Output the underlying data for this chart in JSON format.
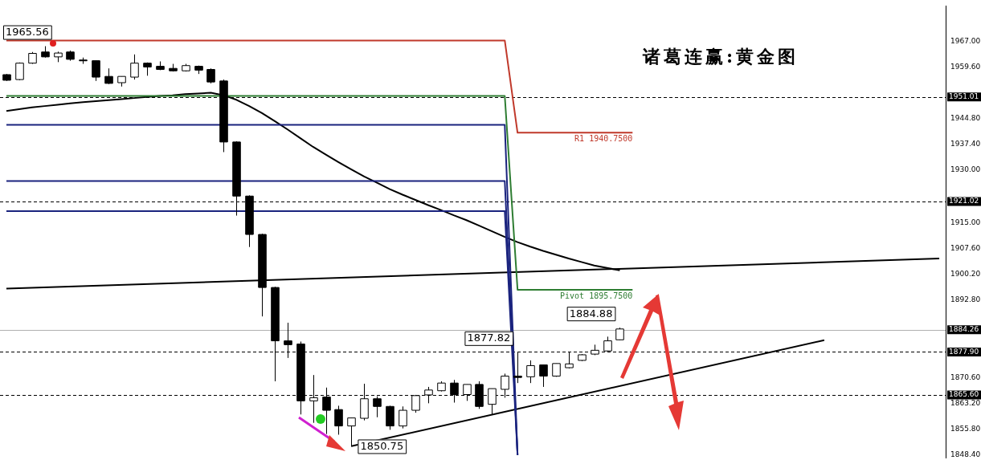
{
  "chart_data": {
    "type": "candlestick",
    "title": "诸葛连赢:黄金图",
    "categories": [
      null,
      null,
      null,
      null,
      null,
      null,
      null,
      null,
      null,
      null,
      null,
      null,
      null,
      null,
      null,
      null,
      null,
      null,
      null,
      null,
      null,
      null,
      null,
      null,
      null,
      null,
      null,
      null,
      null,
      null,
      null,
      null,
      null,
      null,
      null,
      null,
      null,
      null,
      null,
      null,
      null,
      null,
      null,
      null,
      null,
      null,
      null,
      null,
      null,
      null,
      null,
      null,
      null,
      null,
      null,
      null,
      null,
      null,
      null,
      null,
      null,
      null,
      null,
      null,
      null,
      null,
      null,
      null,
      null,
      null,
      null,
      null,
      null,
      null
    ],
    "ohlc": [
      [
        1957.4,
        1957.6,
        1955.6,
        1955.8
      ],
      [
        1956.0,
        1960.9,
        1955.8,
        1960.7
      ],
      [
        1960.7,
        1963.9,
        1960.5,
        1963.5
      ],
      [
        1963.9,
        1965.56,
        1962.3,
        1962.5
      ],
      [
        1962.5,
        1964.0,
        1961.0,
        1963.6
      ],
      [
        1963.9,
        1964.3,
        1961.4,
        1961.8
      ],
      [
        1961.6,
        1962.3,
        1960.5,
        1961.4
      ],
      [
        1961.4,
        1961.4,
        1955.6,
        1956.7
      ],
      [
        1956.9,
        1959.2,
        1954.7,
        1954.9
      ],
      [
        1955.1,
        1956.9,
        1954.0,
        1956.9
      ],
      [
        1956.7,
        1963.2,
        1956.0,
        1960.7
      ],
      [
        1960.7,
        1960.9,
        1957.1,
        1959.6
      ],
      [
        1959.8,
        1961.2,
        1958.7,
        1958.9
      ],
      [
        1959.2,
        1960.5,
        1958.3,
        1958.5
      ],
      [
        1958.5,
        1960.5,
        1958.3,
        1960.0
      ],
      [
        1959.8,
        1960.0,
        1957.6,
        1958.7
      ],
      [
        1958.9,
        1959.2,
        1954.9,
        1955.3
      ],
      [
        1955.6,
        1956.0,
        1935.2,
        1938.1
      ],
      [
        1938.1,
        1938.3,
        1917.0,
        1922.6
      ],
      [
        1922.6,
        1922.8,
        1908.0,
        1911.6
      ],
      [
        1911.6,
        1911.8,
        1888.1,
        1896.4
      ],
      [
        1896.4,
        1896.6,
        1869.5,
        1881.1
      ],
      [
        1881.1,
        1886.3,
        1876.2,
        1880.0
      ],
      [
        1880.2,
        1880.9,
        1860.0,
        1863.9
      ],
      [
        1863.9,
        1871.3,
        1857.6,
        1864.8
      ],
      [
        1865.0,
        1867.7,
        1854.4,
        1861.2
      ],
      [
        1861.4,
        1862.5,
        1854.2,
        1856.7
      ],
      [
        1856.7,
        1859.0,
        1850.75,
        1859.0
      ],
      [
        1858.9,
        1868.8,
        1858.3,
        1864.5
      ],
      [
        1864.5,
        1865.2,
        1859.2,
        1862.3
      ],
      [
        1862.3,
        1862.5,
        1855.6,
        1856.7
      ],
      [
        1856.7,
        1862.3,
        1856.0,
        1861.2
      ],
      [
        1861.2,
        1865.6,
        1860.5,
        1865.4
      ],
      [
        1865.6,
        1867.9,
        1863.2,
        1867.0
      ],
      [
        1866.8,
        1869.5,
        1866.6,
        1869.0
      ],
      [
        1869.0,
        1869.9,
        1863.4,
        1865.7
      ],
      [
        1865.7,
        1868.6,
        1863.9,
        1868.6
      ],
      [
        1868.6,
        1869.5,
        1861.6,
        1862.3
      ],
      [
        1862.9,
        1867.4,
        1860.0,
        1867.4
      ],
      [
        1867.2,
        1871.7,
        1864.8,
        1871.0
      ],
      [
        1871.0,
        1877.82,
        1869.0,
        1870.6
      ],
      [
        1870.8,
        1875.5,
        1869.0,
        1874.0
      ],
      [
        1874.2,
        1874.2,
        1867.9,
        1871.0
      ],
      [
        1871.0,
        1874.6,
        1870.8,
        1874.6
      ],
      [
        1873.4,
        1878.0,
        1873.2,
        1874.5
      ],
      [
        1875.5,
        1877.3,
        1875.3,
        1877.1
      ],
      [
        1877.3,
        1880.0,
        1877.0,
        1878.4
      ],
      [
        1878.2,
        1882.3,
        1878.0,
        1881.1
      ],
      [
        1881.4,
        1884.88,
        1881.3,
        1884.5
      ],
      null,
      null,
      null,
      null,
      null,
      null,
      null,
      null,
      null,
      null,
      null,
      null,
      null,
      null,
      null,
      null,
      null,
      null,
      null,
      null,
      null,
      null,
      null,
      null,
      null
    ],
    "series": [
      {
        "type": "line",
        "name": "R1 1940.7500",
        "color": "#c0392b",
        "values": [
          1967.2,
          1967.2,
          1967.2,
          1967.2,
          1967.2,
          1967.2,
          1967.2,
          1967.2,
          1967.2,
          1967.2,
          1967.2,
          1967.2,
          1967.2,
          1967.2,
          1967.2,
          1967.2,
          1967.2,
          1967.2,
          1967.2,
          1967.2,
          1967.2,
          1967.2,
          1967.2,
          1967.2,
          1967.2,
          1967.2,
          1967.2,
          1967.2,
          1967.2,
          1967.2,
          1967.2,
          1967.2,
          1967.2,
          1967.2,
          1967.2,
          1967.2,
          1967.2,
          1967.2,
          1967.2,
          1967.2,
          1940.75,
          1940.75,
          1940.75,
          1940.75,
          1940.75,
          1940.75,
          1940.75,
          1940.75,
          1940.75,
          1940.75,
          null,
          null,
          null,
          null,
          null,
          null,
          null,
          null,
          null,
          null,
          null,
          null,
          null,
          null,
          null,
          null,
          null,
          null,
          null,
          null,
          null,
          null,
          null,
          null
        ]
      },
      {
        "type": "line",
        "name": "Pivot 1895.7500",
        "color": "#2e7d32",
        "values": [
          1951.3,
          1951.3,
          1951.3,
          1951.3,
          1951.3,
          1951.3,
          1951.3,
          1951.3,
          1951.3,
          1951.3,
          1951.3,
          1951.3,
          1951.3,
          1951.3,
          1951.3,
          1951.3,
          1951.3,
          null,
          1951.3,
          1951.3,
          1951.3,
          1951.3,
          1951.3,
          1951.3,
          1951.3,
          1951.3,
          1951.3,
          1951.3,
          1951.3,
          1951.3,
          1951.3,
          1951.3,
          1951.3,
          1951.3,
          1951.3,
          1951.3,
          1951.3,
          1951.3,
          1951.3,
          1951.3,
          1895.75,
          1895.75,
          1895.75,
          1895.75,
          1895.75,
          1895.75,
          1895.75,
          1895.75,
          1895.75,
          1895.75,
          null,
          null,
          null,
          null,
          null,
          null,
          null,
          null,
          null,
          null,
          null,
          null,
          null,
          null,
          null,
          null,
          null,
          null,
          null,
          null,
          null,
          null,
          null,
          null
        ]
      },
      {
        "type": "line",
        "color": "#1a237e",
        "values": [
          1943.0,
          1943.0,
          1943.0,
          1943.0,
          1943.0,
          1943.0,
          1943.0,
          1943.0,
          1943.0,
          1943.0,
          1943.0,
          1943.0,
          1943.0,
          1943.0,
          1943.0,
          1943.0,
          1943.0,
          null,
          1943.0,
          1943.0,
          1943.0,
          1943.0,
          1943.0,
          1943.0,
          1943.0,
          1943.0,
          1943.0,
          1943.0,
          1943.0,
          1943.0,
          1943.0,
          1943.0,
          1943.0,
          1943.0,
          1943.0,
          1943.0,
          1943.0,
          1943.0,
          1943.0,
          1943.0,
          1848.4,
          null,
          null,
          null,
          null,
          null,
          null,
          null,
          null,
          null,
          null,
          null,
          null,
          null,
          null,
          null,
          null,
          null,
          null,
          null,
          null,
          null,
          null,
          null,
          null,
          null,
          null,
          null,
          null,
          null,
          null,
          null,
          null,
          null
        ]
      },
      {
        "type": "line",
        "color": "#1a237e",
        "values": [
          1926.9,
          1926.9,
          1926.9,
          1926.9,
          1926.9,
          1926.9,
          1926.9,
          1926.9,
          1926.9,
          1926.9,
          1926.9,
          1926.9,
          1926.9,
          1926.9,
          1926.9,
          1926.9,
          1926.9,
          1926.9,
          null,
          1926.9,
          1926.9,
          1926.9,
          1926.9,
          1926.9,
          1926.9,
          1926.9,
          1926.9,
          1926.9,
          1926.9,
          1926.9,
          1926.9,
          1926.9,
          1926.9,
          1926.9,
          1926.9,
          1926.9,
          1926.9,
          1926.9,
          1926.9,
          1926.9,
          1848.4,
          null,
          null,
          null,
          null,
          null,
          null,
          null,
          null,
          null,
          null,
          null,
          null,
          null,
          null,
          null,
          null,
          null,
          null,
          null,
          null,
          null,
          null,
          null,
          null,
          null,
          null,
          null,
          null,
          null,
          null,
          null,
          null,
          null
        ]
      },
      {
        "type": "line",
        "color": "#1a237e",
        "values": [
          1918.3,
          1918.3,
          1918.3,
          1918.3,
          1918.3,
          1918.3,
          1918.3,
          1918.3,
          1918.3,
          1918.3,
          1918.3,
          1918.3,
          1918.3,
          1918.3,
          1918.3,
          1918.3,
          1918.3,
          1918.3,
          1918.3,
          null,
          1918.3,
          1918.3,
          1918.3,
          1918.3,
          1918.3,
          1918.3,
          1918.3,
          1918.3,
          1918.3,
          1918.3,
          1918.3,
          1918.3,
          1918.3,
          1918.3,
          1918.3,
          1918.3,
          1918.3,
          1918.3,
          1918.3,
          1918.3,
          1848.4,
          null,
          null,
          null,
          null,
          null,
          null,
          null,
          null,
          null,
          null,
          null,
          null,
          null,
          null,
          null,
          null,
          null,
          null,
          null,
          null,
          null,
          null,
          null,
          null,
          null,
          null,
          null,
          null,
          null,
          null,
          null,
          null,
          null
        ]
      },
      {
        "type": "line",
        "color": "#000000",
        "values": [
          1947.0,
          1947.5,
          1948.0,
          1948.4,
          1948.8,
          1949.2,
          1949.5,
          1949.8,
          1950.1,
          1950.4,
          1950.7,
          1951.0,
          1951.3,
          1951.5,
          1951.8,
          1952.0,
          1952.2,
          1951.5,
          1950.2,
          1948.4,
          1946.4,
          1944.1,
          1941.7,
          1939.2,
          1936.7,
          1934.5,
          1932.3,
          1930.2,
          1928.2,
          1926.4,
          1924.6,
          1923.0,
          1921.5,
          1920.0,
          1918.6,
          1917.1,
          1915.7,
          1914.1,
          1912.5,
          1910.9,
          1909.4,
          1908.1,
          1906.9,
          1905.8,
          1904.7,
          1903.7,
          1902.7,
          1902.0,
          1901.3,
          null,
          null,
          null,
          null,
          null,
          null,
          null,
          null,
          null,
          null,
          null,
          null,
          null,
          null,
          null,
          null,
          null,
          null,
          null,
          null,
          null,
          null,
          null,
          null,
          null
        ]
      },
      {
        "type": "line",
        "color": "#000000",
        "values": [
          1896.1,
          null,
          null,
          null,
          null,
          null,
          null,
          null,
          null,
          null,
          null,
          null,
          null,
          null,
          null,
          null,
          null,
          null,
          null,
          null,
          null,
          null,
          null,
          null,
          null,
          null,
          null,
          null,
          null,
          null,
          null,
          null,
          null,
          null,
          null,
          null,
          null,
          null,
          null,
          null,
          null,
          null,
          null,
          null,
          null,
          null,
          null,
          null,
          null,
          null,
          null,
          null,
          null,
          null,
          null,
          null,
          null,
          null,
          null,
          null,
          null,
          null,
          null,
          null,
          null,
          null,
          null,
          null,
          null,
          null,
          null,
          null,
          null,
          1904.7
        ]
      },
      {
        "type": "line",
        "color": "#000000",
        "values": [
          null,
          null,
          null,
          null,
          null,
          null,
          null,
          null,
          null,
          null,
          null,
          null,
          null,
          null,
          null,
          null,
          null,
          null,
          null,
          null,
          null,
          null,
          null,
          null,
          null,
          null,
          null,
          1850.9,
          null,
          null,
          null,
          null,
          null,
          null,
          null,
          null,
          null,
          null,
          null,
          null,
          null,
          null,
          null,
          null,
          null,
          null,
          null,
          null,
          null,
          null,
          null,
          null,
          null,
          null,
          null,
          null,
          null,
          null,
          null,
          null,
          null,
          null,
          null,
          null,
          1881.3,
          null,
          null,
          null,
          null,
          null,
          null,
          null,
          null,
          null
        ]
      }
    ],
    "ylim": [
      1847.5,
      1977.1
    ],
    "yticks": [
      {
        "value": 1967.0,
        "label": "1967.00"
      },
      {
        "value": 1959.6,
        "label": "1959.60"
      },
      {
        "value": 1944.8,
        "label": "1944.80"
      },
      {
        "value": 1937.4,
        "label": "1937.40"
      },
      {
        "value": 1930.0,
        "label": "1930.00"
      },
      {
        "value": 1915.0,
        "label": "1915.00"
      },
      {
        "value": 1907.6,
        "label": "1907.60"
      },
      {
        "value": 1900.2,
        "label": "1900.20"
      },
      {
        "value": 1892.8,
        "label": "1892.80"
      },
      {
        "value": 1870.6,
        "label": "1870.60"
      },
      {
        "value": 1863.2,
        "label": "1863.20"
      },
      {
        "value": 1855.8,
        "label": "1855.80"
      },
      {
        "value": 1848.4,
        "label": "1848.40"
      }
    ],
    "ref_lines": [
      {
        "axis": "y",
        "value": 1951.01,
        "label": "1951.01",
        "color": "#000000",
        "line_style": "dashed"
      },
      {
        "axis": "y",
        "value": 1921.02,
        "label": "1921.02",
        "color": "#000000",
        "line_style": "dashed"
      },
      {
        "axis": "y",
        "value": 1884.26,
        "label": "1884.26",
        "color": "#b0b0b0",
        "line_style": "solid"
      },
      {
        "axis": "y",
        "value": 1877.9,
        "label": "1877.90",
        "color": "#000000",
        "line_style": "dashed"
      },
      {
        "axis": "y",
        "value": 1865.6,
        "label": "1865.60",
        "color": "#000000",
        "line_style": "dashed"
      }
    ],
    "annotations": [
      "1965.56",
      "1850.75",
      "1877.82",
      "1884.88"
    ],
    "tick_labels": "y"
  }
}
